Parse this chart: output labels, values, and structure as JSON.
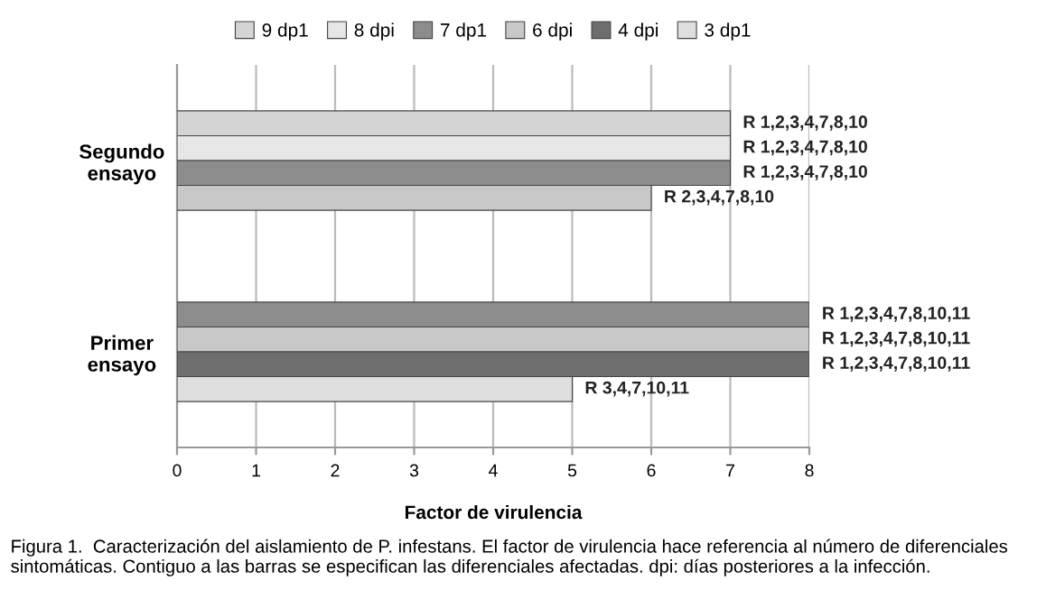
{
  "chart_data": {
    "type": "bar",
    "orientation": "horizontal",
    "categories": [
      "Segundo ensayo",
      "Primer ensayo"
    ],
    "series": [
      {
        "name": "9 dp1",
        "color": "#d4d4d4",
        "values": [
          7,
          null
        ],
        "value_labels": [
          "R 1,2,3,4,7,8,10",
          null
        ]
      },
      {
        "name": "8 dpi",
        "color": "#e6e6e6",
        "values": [
          7,
          null
        ],
        "value_labels": [
          "R 1,2,3,4,7,8,10",
          null
        ]
      },
      {
        "name": "7 dp1",
        "color": "#8c8c8c",
        "values": [
          7,
          8
        ],
        "value_labels": [
          "R 1,2,3,4,7,8,10",
          "R 1,2,3,4,7,8,10,11"
        ]
      },
      {
        "name": "6 dpi",
        "color": "#c8c8c8",
        "values": [
          6,
          8
        ],
        "value_labels": [
          "R 2,3,4,7,8,10",
          "R 1,2,3,4,7,8,10,11"
        ]
      },
      {
        "name": "4 dpi",
        "color": "#6e6e6e",
        "values": [
          null,
          8
        ],
        "value_labels": [
          null,
          "R 1,2,3,4,7,8,10,11"
        ]
      },
      {
        "name": "3 dp1",
        "color": "#dedede",
        "values": [
          null,
          5
        ],
        "value_labels": [
          null,
          "R 3,4,7,10,11"
        ]
      }
    ],
    "xlim": [
      0,
      8
    ],
    "xticks": [
      0,
      1,
      2,
      3,
      4,
      5,
      6,
      7,
      8
    ],
    "xlabel": "Factor de virulencia",
    "grid": "x",
    "legend": "top",
    "annotations": [
      "Figura 1.  Caracterización del aislamiento de P. infestans. El factor de virulencia hace referencia al número de diferenciales sintomáticas. Contiguo a las barras se especifican las diferenciales afectadas. dpi: días posteriores a la infección."
    ]
  }
}
